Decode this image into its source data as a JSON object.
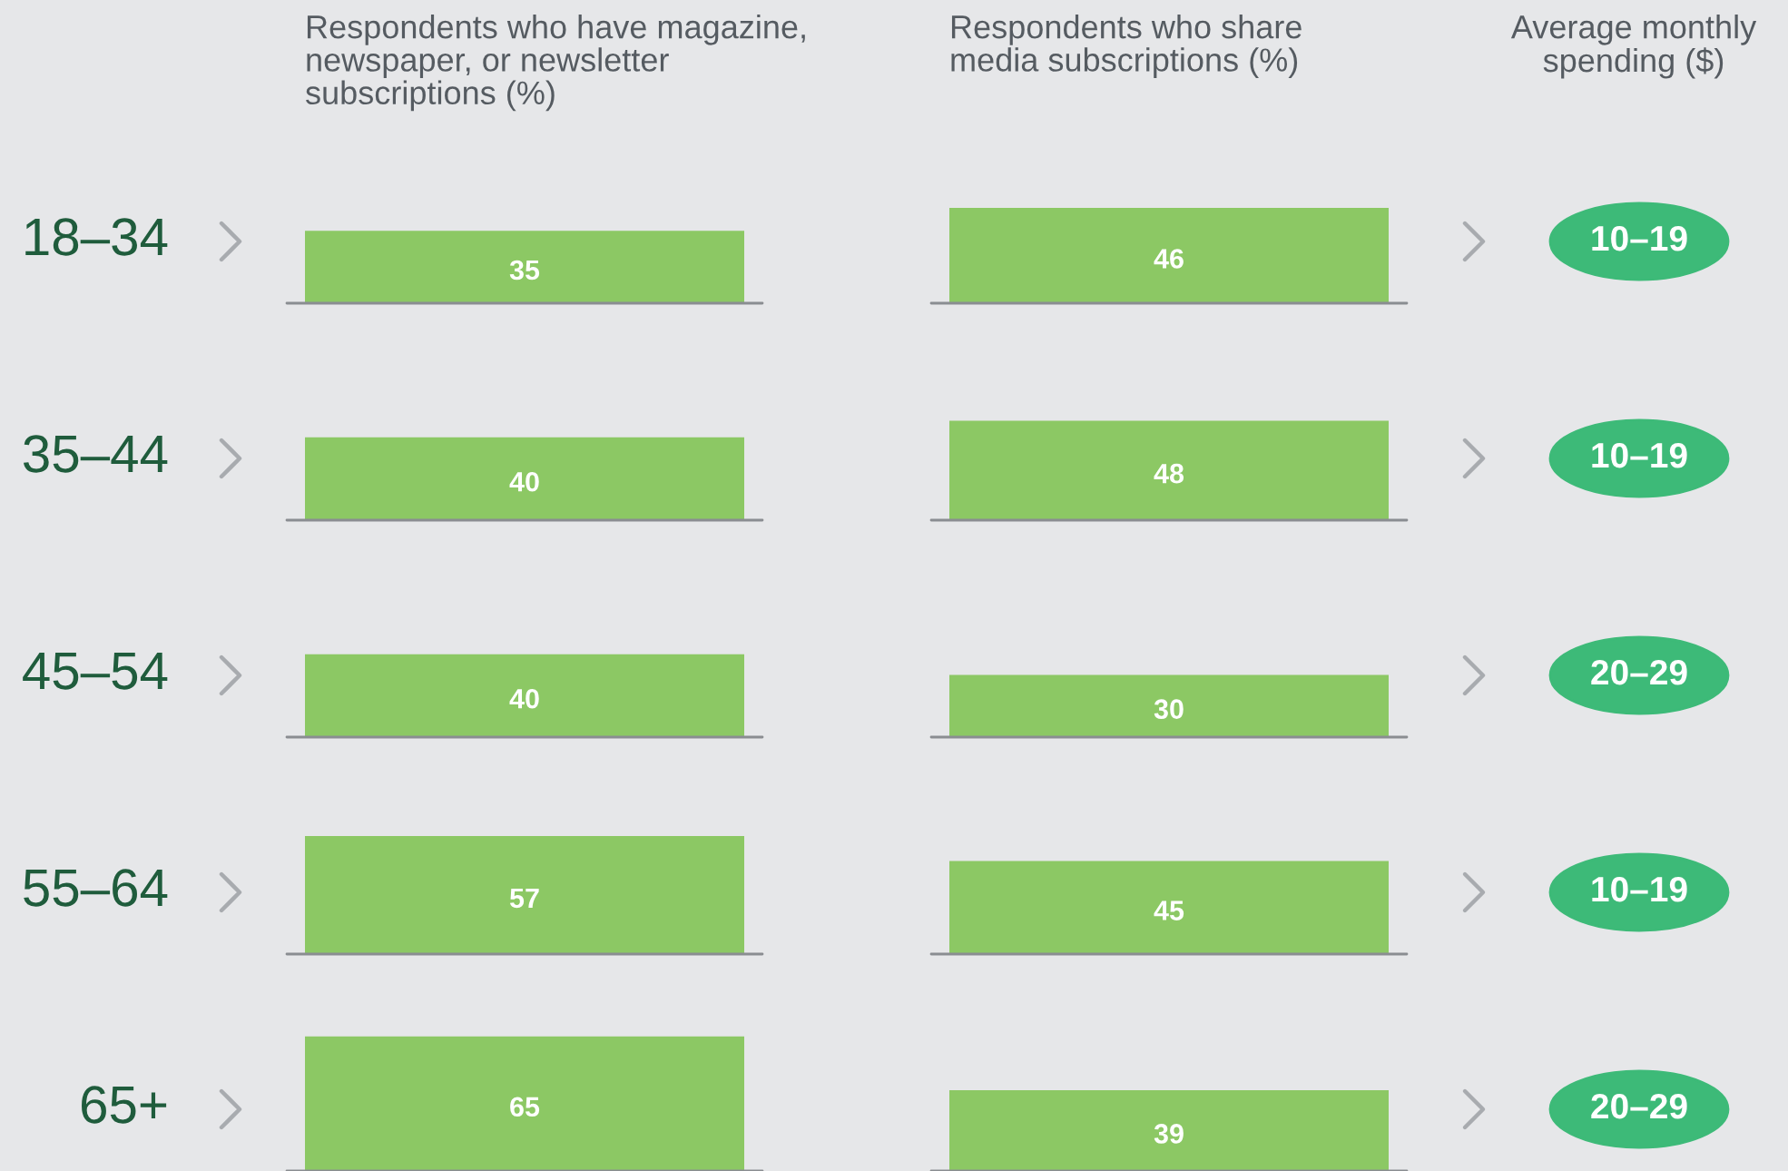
{
  "chart_data": [
    {
      "type": "other",
      "categories": [
        "18–34",
        "35–44",
        "45–54",
        "55–64",
        "65+"
      ]
    },
    {
      "type": "other",
      "annotations": [
        "Respondents who have magazine,\nnewspaper, or newsletter\nsubscriptions (%)",
        "Respondents who share\nmedia subscriptions (%)"
      ]
    },
    {
      "type": "other",
      "title": "Average monthly\nspending ($)",
      "value_labels": [
        "10–19",
        "10–19",
        "20–29",
        "10–19",
        "20–29"
      ],
      "color": "#3dba78"
    },
    {
      "type": "bar",
      "categories": [
        null,
        null
      ],
      "values": [
        35,
        46
      ],
      "color": "#8cc864",
      "data_labels": true
    },
    {
      "type": "bar",
      "categories": [
        null,
        null
      ],
      "values": [
        40,
        48
      ],
      "color": "#8cc864",
      "data_labels": true
    },
    {
      "type": "bar",
      "categories": [
        null,
        null
      ],
      "values": [
        40,
        30
      ],
      "color": "#8cc864",
      "data_labels": true
    },
    {
      "type": "bar",
      "categories": [
        null,
        null
      ],
      "values": [
        57,
        45
      ],
      "color": "#8cc864",
      "data_labels": true
    },
    {
      "type": "bar",
      "categories": [
        null,
        null
      ],
      "values": [
        65,
        39
      ],
      "color": "#8cc864",
      "data_labels": true
    }
  ]
}
